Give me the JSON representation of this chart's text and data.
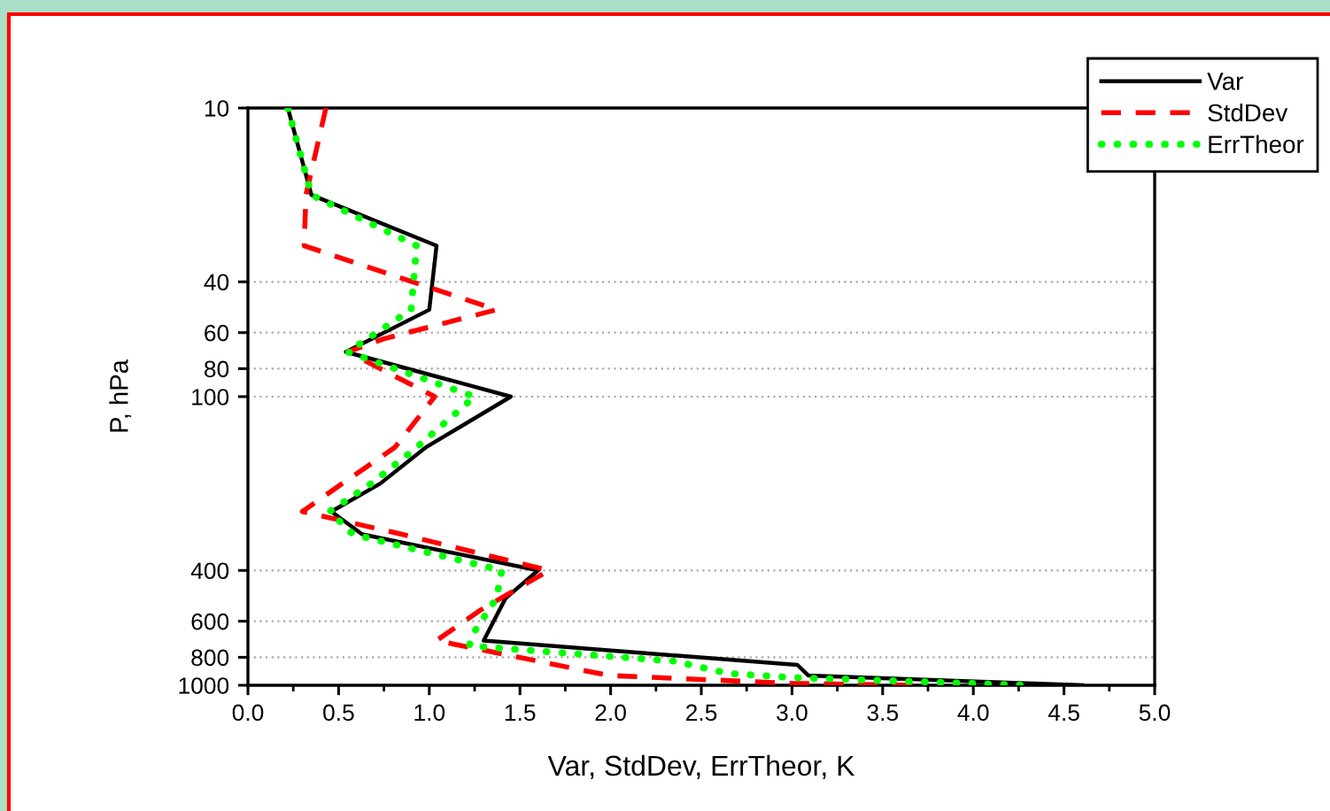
{
  "chart_data": {
    "type": "line",
    "xlabel": "Var, StdDev, ErrTheor, K",
    "ylabel": "P, hPa",
    "series": [
      {
        "name": "Var",
        "color": "#000000",
        "line_style": "solid",
        "x": [
          0.22,
          0.35,
          1.04,
          1.0,
          0.54,
          1.45,
          0.98,
          0.73,
          0.46,
          0.63,
          1.6,
          1.42,
          1.3,
          3.03,
          3.09,
          4.6
        ],
        "values": [
          10,
          20,
          30,
          50,
          70,
          100,
          150,
          200,
          250,
          300,
          400,
          500,
          700,
          850,
          925,
          1000
        ]
      },
      {
        "name": "StdDev",
        "color": "#ff0000",
        "line_style": "dashed",
        "x": [
          0.43,
          0.32,
          0.31,
          1.37,
          0.75,
          0.55,
          1.03,
          0.81,
          0.52,
          0.3,
          0.85,
          1.66,
          1.28,
          1.04,
          1.99,
          3.0,
          3.7
        ],
        "values": [
          10,
          20,
          30,
          50,
          63,
          70,
          100,
          150,
          200,
          250,
          300,
          400,
          550,
          700,
          925,
          985,
          1000
        ]
      },
      {
        "name": "ErrTheor",
        "color": "#00ff00",
        "line_style": "dotted",
        "x": [
          0.22,
          0.35,
          0.93,
          0.9,
          0.55,
          1.25,
          0.93,
          0.68,
          0.45,
          0.58,
          1.4,
          1.37,
          1.25,
          1.22,
          2.35,
          2.65,
          3.0,
          4.3
        ],
        "values": [
          10,
          20,
          30,
          50,
          70,
          100,
          150,
          200,
          250,
          300,
          400,
          500,
          650,
          730,
          825,
          910,
          940,
          1000
        ]
      }
    ],
    "xlim": [
      0,
      5
    ],
    "xticks": [
      {
        "value": 0,
        "label": "0.0"
      },
      {
        "value": 0.25,
        "label": null
      },
      0.5,
      {
        "value": 0.75,
        "label": null
      },
      {
        "value": 1,
        "label": "1.0"
      },
      {
        "value": 1.25,
        "label": null
      },
      1.5,
      {
        "value": 1.75,
        "label": null
      },
      {
        "value": 2,
        "label": "2.0"
      },
      {
        "value": 2.25,
        "label": null
      },
      2.5,
      {
        "value": 2.75,
        "label": null
      },
      {
        "value": 3,
        "label": "3.0"
      },
      {
        "value": 3.25,
        "label": null
      },
      3.5,
      {
        "value": 3.75,
        "label": null
      },
      {
        "value": 4,
        "label": "4.0"
      },
      {
        "value": 4.25,
        "label": null
      },
      4.5,
      {
        "value": 4.75,
        "label": null
      },
      {
        "value": 5,
        "label": "5.0"
      }
    ],
    "ylim": [
      1000,
      10
    ],
    "yticks": [
      10,
      40,
      60,
      80,
      100,
      400,
      600,
      800,
      1000
    ],
    "log": "y",
    "grid": "y",
    "legend": "top right"
  }
}
